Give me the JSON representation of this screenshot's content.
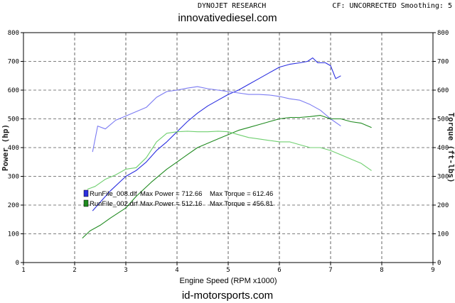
{
  "header": {
    "left_text": "DYNOJET RESEARCH",
    "right_text": "CF: UNCORRECTED  Smoothing: 5"
  },
  "watermarks": {
    "top": "innovativediesel.com",
    "bottom": "id-motorsports.com"
  },
  "legend": {
    "entries": [
      {
        "file": "RunFile_008.dlf",
        "max_power_label": "Max Power = 712.66",
        "max_torque_label": "Max Torque = 612.46",
        "color": "#2a2ee0"
      },
      {
        "file": "RunFile_002.drf",
        "max_power_label": "Max Power = 512.16",
        "max_torque_label": "Max Torque = 456.81",
        "color": "#1f8a1f"
      }
    ]
  },
  "chart_data": {
    "type": "line",
    "title": "",
    "xlabel": "Engine Speed (RPM x1000)",
    "ylabel_left": "Power (hp)",
    "ylabel_right": "Torque (ft-lbs)",
    "xlim": [
      1,
      9
    ],
    "ylim": [
      0,
      800
    ],
    "x_ticks": [
      1,
      2,
      3,
      4,
      5,
      6,
      7,
      8,
      9
    ],
    "y_ticks": [
      0,
      100,
      200,
      300,
      400,
      500,
      600,
      700,
      800
    ],
    "grid": true,
    "legend_position": "lower-left",
    "series": [
      {
        "name": "RunFile_008.dlf",
        "measure": "power",
        "color": "#2a2ee0",
        "points": [
          [
            2.35,
            180
          ],
          [
            2.5,
            210
          ],
          [
            2.7,
            250
          ],
          [
            3.0,
            300
          ],
          [
            3.2,
            320
          ],
          [
            3.4,
            350
          ],
          [
            3.6,
            390
          ],
          [
            3.8,
            420
          ],
          [
            4.0,
            455
          ],
          [
            4.2,
            490
          ],
          [
            4.4,
            520
          ],
          [
            4.6,
            545
          ],
          [
            4.8,
            565
          ],
          [
            5.0,
            585
          ],
          [
            5.2,
            600
          ],
          [
            5.4,
            620
          ],
          [
            5.6,
            640
          ],
          [
            5.8,
            660
          ],
          [
            6.0,
            680
          ],
          [
            6.2,
            690
          ],
          [
            6.4,
            695
          ],
          [
            6.55,
            700
          ],
          [
            6.65,
            712
          ],
          [
            6.75,
            695
          ],
          [
            6.9,
            695
          ],
          [
            7.0,
            685
          ],
          [
            7.1,
            640
          ],
          [
            7.2,
            650
          ]
        ]
      },
      {
        "name": "RunFile_008.dlf",
        "measure": "torque",
        "color": "#7b7bf2",
        "points": [
          [
            2.35,
            385
          ],
          [
            2.45,
            475
          ],
          [
            2.6,
            465
          ],
          [
            2.8,
            495
          ],
          [
            3.0,
            510
          ],
          [
            3.2,
            525
          ],
          [
            3.4,
            540
          ],
          [
            3.6,
            575
          ],
          [
            3.8,
            595
          ],
          [
            4.0,
            600
          ],
          [
            4.2,
            607
          ],
          [
            4.4,
            612
          ],
          [
            4.6,
            605
          ],
          [
            4.8,
            600
          ],
          [
            5.0,
            595
          ],
          [
            5.2,
            590
          ],
          [
            5.4,
            585
          ],
          [
            5.6,
            585
          ],
          [
            5.8,
            583
          ],
          [
            6.0,
            578
          ],
          [
            6.2,
            570
          ],
          [
            6.4,
            565
          ],
          [
            6.6,
            550
          ],
          [
            6.8,
            530
          ],
          [
            7.0,
            500
          ],
          [
            7.2,
            475
          ]
        ]
      },
      {
        "name": "RunFile_002.drf",
        "measure": "power",
        "color": "#1f8a1f",
        "points": [
          [
            2.15,
            85
          ],
          [
            2.3,
            110
          ],
          [
            2.5,
            130
          ],
          [
            2.7,
            155
          ],
          [
            3.0,
            190
          ],
          [
            3.2,
            230
          ],
          [
            3.5,
            280
          ],
          [
            3.8,
            325
          ],
          [
            4.0,
            350
          ],
          [
            4.2,
            375
          ],
          [
            4.4,
            400
          ],
          [
            4.6,
            415
          ],
          [
            4.8,
            430
          ],
          [
            5.0,
            445
          ],
          [
            5.2,
            460
          ],
          [
            5.4,
            470
          ],
          [
            5.6,
            480
          ],
          [
            5.8,
            490
          ],
          [
            6.0,
            500
          ],
          [
            6.2,
            505
          ],
          [
            6.4,
            505
          ],
          [
            6.6,
            508
          ],
          [
            6.8,
            512
          ],
          [
            7.0,
            500
          ],
          [
            7.2,
            500
          ],
          [
            7.4,
            490
          ],
          [
            7.6,
            485
          ],
          [
            7.8,
            470
          ]
        ]
      },
      {
        "name": "RunFile_002.drf",
        "measure": "torque",
        "color": "#6fcf6f",
        "points": [
          [
            2.25,
            255
          ],
          [
            2.4,
            265
          ],
          [
            2.6,
            290
          ],
          [
            2.8,
            305
          ],
          [
            3.0,
            325
          ],
          [
            3.2,
            330
          ],
          [
            3.4,
            365
          ],
          [
            3.6,
            420
          ],
          [
            3.8,
            450
          ],
          [
            4.0,
            455
          ],
          [
            4.2,
            457
          ],
          [
            4.4,
            455
          ],
          [
            4.6,
            455
          ],
          [
            4.8,
            457
          ],
          [
            5.0,
            455
          ],
          [
            5.2,
            445
          ],
          [
            5.4,
            435
          ],
          [
            5.6,
            430
          ],
          [
            5.8,
            425
          ],
          [
            6.0,
            420
          ],
          [
            6.2,
            420
          ],
          [
            6.4,
            410
          ],
          [
            6.6,
            400
          ],
          [
            6.8,
            400
          ],
          [
            7.0,
            390
          ],
          [
            7.2,
            375
          ],
          [
            7.4,
            360
          ],
          [
            7.6,
            345
          ],
          [
            7.8,
            320
          ]
        ]
      }
    ]
  }
}
